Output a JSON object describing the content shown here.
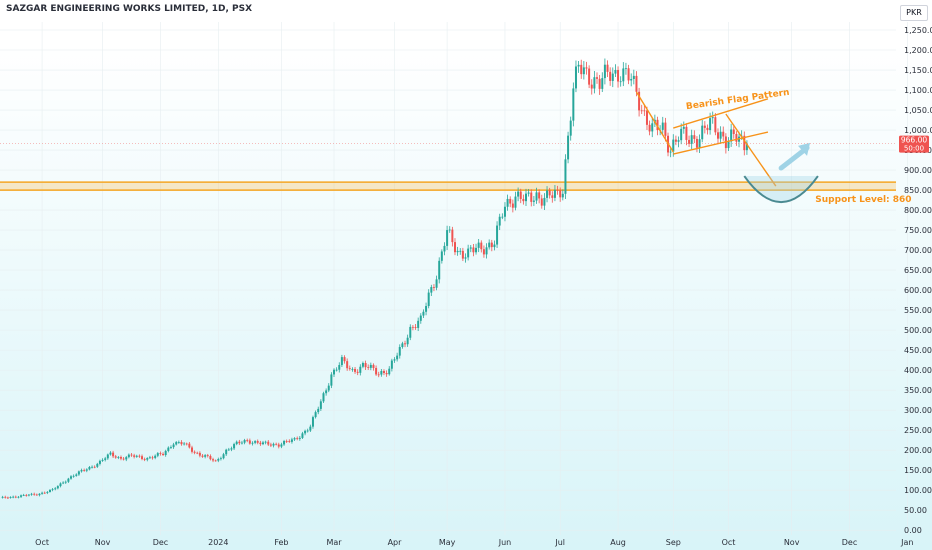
{
  "title": "SAZGAR ENGINEERING WORKS LIMITED, 1D, PSX",
  "currency": "PKR",
  "colors": {
    "up": "#26a69a",
    "down": "#ef5350",
    "annotation": "#f7931a",
    "support": "#f5a623",
    "curve": "#4a8a91",
    "arrow": "#9fd3e6",
    "price_tag": "#ef5350"
  },
  "chart_data": {
    "type": "candlestick",
    "y_axis_labels": [
      "1,250.00",
      "1,200.00",
      "1,150.00",
      "1,100.00",
      "1,050.00",
      "1,000.00",
      "950.00",
      "900.00",
      "850.00",
      "800.00",
      "750.00",
      "700.00",
      "650.00",
      "600.00",
      "550.00",
      "500.00",
      "450.00",
      "400.00",
      "350.00",
      "300.00",
      "250.00",
      "200.00",
      "150.00",
      "100.00",
      "50.00",
      "0.00"
    ],
    "y_axis_values": [
      1250,
      1200,
      1150,
      1100,
      1050,
      1000,
      950,
      900,
      850,
      800,
      750,
      700,
      650,
      600,
      550,
      500,
      450,
      400,
      350,
      300,
      250,
      200,
      150,
      100,
      50,
      0
    ],
    "ylim": [
      -12,
      1270
    ],
    "x_axis_labels": [
      {
        "label": "Oct",
        "index": 16
      },
      {
        "label": "Nov",
        "index": 39
      },
      {
        "label": "Dec",
        "index": 61
      },
      {
        "label": "2024",
        "index": 83
      },
      {
        "label": "Feb",
        "index": 107
      },
      {
        "label": "Mar",
        "index": 127
      },
      {
        "label": "Apr",
        "index": 150
      },
      {
        "label": "May",
        "index": 170
      },
      {
        "label": "Jun",
        "index": 192
      },
      {
        "label": "Jul",
        "index": 213
      },
      {
        "label": "Aug",
        "index": 235
      },
      {
        "label": "Sep",
        "index": 256
      },
      {
        "label": "Oct",
        "index": 277
      },
      {
        "label": "Nov",
        "index": 301
      },
      {
        "label": "Dec",
        "index": 323
      },
      {
        "label": "Jan",
        "index": 345
      }
    ],
    "anchors": [
      [
        0,
        80
      ],
      [
        14,
        90
      ],
      [
        20,
        100
      ],
      [
        26,
        130
      ],
      [
        32,
        150
      ],
      [
        38,
        170
      ],
      [
        42,
        190
      ],
      [
        46,
        180
      ],
      [
        50,
        185
      ],
      [
        56,
        180
      ],
      [
        62,
        190
      ],
      [
        66,
        220
      ],
      [
        70,
        215
      ],
      [
        74,
        195
      ],
      [
        78,
        185
      ],
      [
        82,
        170
      ],
      [
        86,
        200
      ],
      [
        90,
        215
      ],
      [
        94,
        225
      ],
      [
        100,
        215
      ],
      [
        106,
        215
      ],
      [
        112,
        225
      ],
      [
        118,
        260
      ],
      [
        122,
        320
      ],
      [
        126,
        390
      ],
      [
        130,
        420
      ],
      [
        134,
        400
      ],
      [
        138,
        410
      ],
      [
        144,
        395
      ],
      [
        148,
        400
      ],
      [
        152,
        450
      ],
      [
        156,
        505
      ],
      [
        160,
        520
      ],
      [
        163,
        590
      ],
      [
        166,
        640
      ],
      [
        170,
        740
      ],
      [
        174,
        700
      ],
      [
        178,
        690
      ],
      [
        184,
        710
      ],
      [
        188,
        720
      ],
      [
        192,
        810
      ],
      [
        196,
        840
      ],
      [
        200,
        820
      ],
      [
        204,
        840
      ],
      [
        208,
        830
      ],
      [
        212,
        835
      ],
      [
        214,
        860
      ],
      [
        216,
        990
      ],
      [
        218,
        1100
      ],
      [
        220,
        1150
      ],
      [
        224,
        1140
      ],
      [
        228,
        1115
      ],
      [
        232,
        1140
      ],
      [
        236,
        1150
      ],
      [
        240,
        1120
      ],
      [
        244,
        1060
      ],
      [
        248,
        1000
      ],
      [
        252,
        1000
      ],
      [
        255,
        960
      ],
      [
        258,
        985
      ],
      [
        262,
        975
      ],
      [
        266,
        990
      ],
      [
        270,
        1010
      ],
      [
        274,
        995
      ],
      [
        276,
        980
      ],
      [
        280,
        975
      ],
      [
        284,
        960
      ]
    ],
    "last_index": 284,
    "last_price": 966.0,
    "last_price_label": "966.00",
    "countdown": "50:00",
    "support_level": 860,
    "annotations": {
      "flag_label": "Bearish Flag Pattern",
      "support_label": "Support Level: 860"
    }
  }
}
